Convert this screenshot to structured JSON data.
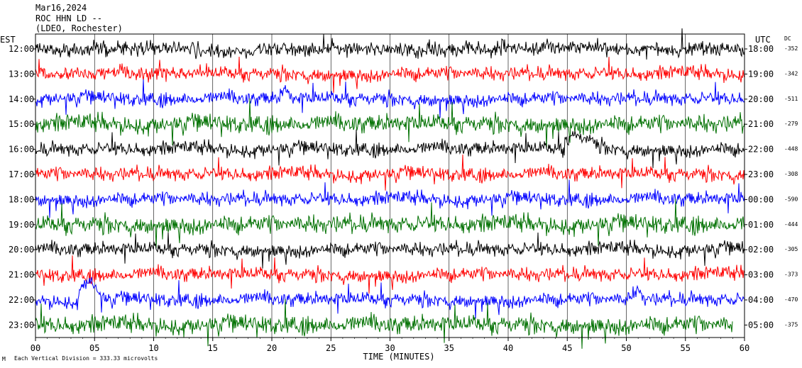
{
  "header": {
    "date": "Mar16,2024",
    "station": "ROC HHN LD --",
    "network": "(LDEO, Rochester)"
  },
  "chart_data": {
    "type": "line",
    "title": "",
    "left_axis_label": "EST",
    "right_axis_label": "UTC",
    "dc_label": "DC",
    "xlabel": "TIME (MINUTES)",
    "xlim": [
      0,
      60
    ],
    "x_ticks": [
      "00",
      "05",
      "10",
      "15",
      "20",
      "25",
      "30",
      "35",
      "40",
      "45",
      "50",
      "55",
      "60"
    ],
    "scale_note": "Each Vertical Division = 333.33 microvolts",
    "trace_colors": [
      "#000000",
      "#ff0000",
      "#0000ff",
      "#007000"
    ],
    "rows": [
      {
        "est": "12:00",
        "utc": "18:00",
        "dc": "-352",
        "color": "#000000"
      },
      {
        "est": "13:00",
        "utc": "19:00",
        "dc": "-342",
        "color": "#ff0000"
      },
      {
        "est": "14:00",
        "utc": "20:00",
        "dc": "-511",
        "color": "#0000ff"
      },
      {
        "est": "15:00",
        "utc": "21:00",
        "dc": "-279",
        "color": "#007000"
      },
      {
        "est": "16:00",
        "utc": "22:00",
        "dc": "-448",
        "color": "#000000"
      },
      {
        "est": "17:00",
        "utc": "23:00",
        "dc": "-308",
        "color": "#ff0000"
      },
      {
        "est": "18:00",
        "utc": "00:00",
        "dc": "-590",
        "color": "#0000ff"
      },
      {
        "est": "19:00",
        "utc": "01:00",
        "dc": "-444",
        "color": "#007000"
      },
      {
        "est": "20:00",
        "utc": "02:00",
        "dc": "-305",
        "color": "#000000"
      },
      {
        "est": "21:00",
        "utc": "03:00",
        "dc": "-373",
        "color": "#ff0000"
      },
      {
        "est": "22:00",
        "utc": "04:00",
        "dc": "-470",
        "color": "#0000ff"
      },
      {
        "est": "23:00",
        "utc": "05:00",
        "dc": "-375",
        "color": "#007000"
      }
    ]
  }
}
